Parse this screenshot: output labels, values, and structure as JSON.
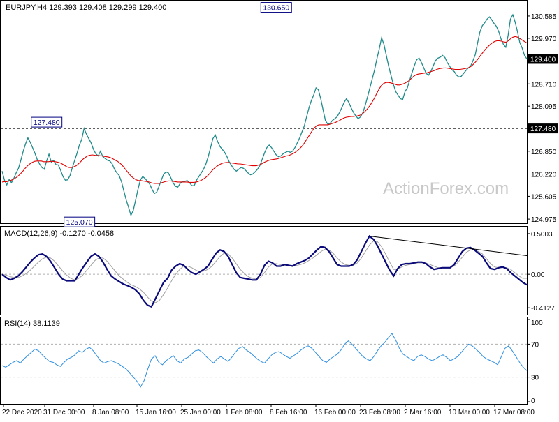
{
  "chart_data": {
    "type": "line",
    "symbol": "EURJPY",
    "timeframe": "H4",
    "header_text": "EURJPY,H4  129.393 129.408 129.299 129.400",
    "ohlc": {
      "open": 129.393,
      "high": 129.408,
      "low": 129.299,
      "close": 129.4
    },
    "watermark": "ActionForex.com",
    "x_tick_labels": [
      "22 Dec 2020",
      "31 Dec 00:00",
      "8 Jan 08:00",
      "15 Jan 16:00",
      "25 Jan 00:00",
      "1 Feb 08:00",
      "8 Feb 16:00",
      "16 Feb 00:00",
      "23 Feb 08:00",
      "2 Mar 16:00",
      "10 Mar 00:00",
      "17 Mar 08:00"
    ],
    "price_panel": {
      "y_ticks": [
        130.585,
        129.97,
        129.355,
        128.71,
        128.095,
        127.48,
        126.85,
        126.22,
        125.605,
        124.975
      ],
      "ylim": [
        124.9,
        130.95
      ],
      "current_price_label": "129.400",
      "current_price": 129.4,
      "level_label": "127.480",
      "level": 127.48,
      "annotations": [
        {
          "text": "127.480",
          "value": 127.48,
          "index": 19
        },
        {
          "text": "125.070",
          "value": 125.07,
          "index": 33
        },
        {
          "text": "130.650",
          "value": 130.65,
          "index": 117
        }
      ],
      "series": [
        {
          "name": "",
          "values": [
            126.3,
            126.05,
            125.92,
            126.07,
            125.98,
            126.1,
            126.25,
            126.38,
            126.6,
            126.85,
            127.05,
            127.22,
            127.1,
            126.95,
            126.8,
            126.62,
            126.5,
            126.4,
            126.35,
            126.58,
            126.77,
            126.55,
            126.6,
            126.48,
            126.47,
            126.32,
            126.15,
            126.05,
            126.06,
            126.18,
            126.4,
            126.6,
            126.8,
            127.02,
            127.18,
            127.48,
            127.32,
            127.2,
            127.08,
            126.9,
            126.78,
            126.72,
            126.85,
            126.7,
            126.65,
            126.6,
            126.58,
            126.5,
            126.35,
            126.25,
            126.18,
            126.0,
            125.75,
            125.5,
            125.3,
            125.08,
            125.22,
            125.5,
            125.8,
            126.05,
            126.15,
            126.1,
            126.02,
            125.94,
            125.8,
            125.68,
            125.72,
            125.88,
            126.06,
            126.22,
            126.28,
            126.25,
            126.12,
            125.98,
            125.88,
            125.86,
            125.96,
            126.02,
            126.02,
            126.04,
            125.98,
            125.9,
            125.9,
            126.05,
            126.15,
            126.25,
            126.35,
            126.5,
            126.7,
            126.95,
            127.2,
            127.3,
            127.12,
            126.98,
            126.9,
            126.82,
            126.7,
            126.55,
            126.45,
            126.35,
            126.3,
            126.35,
            126.4,
            126.38,
            126.32,
            126.25,
            126.2,
            126.22,
            126.28,
            126.35,
            126.45,
            126.62,
            126.8,
            126.95,
            127.02,
            126.95,
            126.85,
            126.75,
            126.7,
            126.72,
            126.78,
            126.82,
            126.85,
            126.82,
            126.85,
            126.95,
            127.08,
            127.22,
            127.38,
            127.55,
            127.8,
            128.05,
            128.25,
            128.4,
            128.6,
            128.55,
            128.3,
            128.0,
            127.7,
            127.6,
            127.62,
            127.7,
            127.75,
            127.8,
            127.92,
            128.05,
            128.2,
            128.3,
            128.2,
            128.05,
            127.92,
            127.82,
            127.75,
            127.8,
            127.92,
            128.12,
            128.35,
            128.6,
            128.85,
            129.1,
            129.4,
            129.68,
            129.98,
            129.8,
            129.5,
            129.2,
            128.95,
            128.7,
            128.5,
            128.4,
            128.3,
            128.28,
            128.5,
            128.6,
            128.82,
            129.02,
            129.22,
            129.38,
            129.42,
            129.3,
            129.15,
            129.0,
            128.95,
            129.05,
            129.2,
            129.35,
            129.42,
            129.45,
            129.5,
            129.44,
            129.3,
            129.2,
            129.1,
            129.05,
            128.95,
            128.9,
            128.92,
            129.0,
            129.08,
            129.15,
            129.2,
            129.35,
            129.52,
            129.85,
            130.15,
            130.32,
            130.4,
            130.5,
            130.56,
            130.48,
            130.38,
            130.3,
            130.15,
            129.95,
            129.8,
            129.72,
            130.05,
            130.5,
            130.62,
            130.42,
            130.15,
            129.85,
            129.7,
            129.5,
            129.4
          ]
        },
        {
          "name": "",
          "values": [
            126.0,
            126.01,
            126.01,
            126.03,
            126.05,
            126.08,
            126.12,
            126.17,
            126.23,
            126.3,
            126.38,
            126.45,
            126.5,
            126.54,
            126.57,
            126.58,
            126.58,
            126.58,
            126.56,
            126.56,
            126.56,
            126.57,
            126.57,
            126.56,
            126.55,
            126.53,
            126.5,
            126.46,
            126.42,
            126.4,
            126.4,
            126.42,
            126.45,
            126.5,
            126.56,
            126.63,
            126.68,
            126.72,
            126.74,
            126.75,
            126.74,
            126.73,
            126.73,
            126.72,
            126.71,
            126.7,
            126.69,
            126.67,
            126.64,
            126.6,
            126.57,
            126.52,
            126.46,
            126.38,
            126.3,
            126.22,
            126.15,
            126.1,
            126.06,
            126.04,
            126.04,
            126.03,
            126.02,
            126.01,
            125.99,
            125.97,
            125.96,
            125.96,
            125.96,
            125.98,
            126.0,
            126.02,
            126.03,
            126.03,
            126.02,
            126.01,
            126.0,
            126.0,
            126.0,
            126.0,
            126.0,
            125.99,
            125.99,
            125.99,
            126.0,
            126.02,
            126.04,
            126.08,
            126.12,
            126.18,
            126.25,
            126.33,
            126.39,
            126.44,
            126.48,
            126.51,
            126.53,
            126.54,
            126.54,
            126.53,
            126.52,
            126.51,
            126.5,
            126.5,
            126.49,
            126.48,
            126.47,
            126.46,
            126.45,
            126.45,
            126.45,
            126.47,
            126.49,
            126.53,
            126.56,
            126.59,
            126.61,
            126.62,
            126.63,
            126.64,
            126.66,
            126.68,
            126.7,
            126.72,
            126.73,
            126.76,
            126.79,
            126.83,
            126.88,
            126.94,
            127.01,
            127.1,
            127.2,
            127.3,
            127.4,
            127.49,
            127.55,
            127.58,
            127.58,
            127.58,
            127.58,
            127.58,
            127.6,
            127.62,
            127.64,
            127.67,
            127.7,
            127.74,
            127.77,
            127.79,
            127.8,
            127.81,
            127.81,
            127.82,
            127.83,
            127.85,
            127.89,
            127.95,
            128.02,
            128.1,
            128.2,
            128.31,
            128.44,
            128.56,
            128.66,
            128.72,
            128.75,
            128.75,
            128.74,
            128.72,
            128.7,
            128.68,
            128.68,
            128.7,
            128.72,
            128.76,
            128.8,
            128.86,
            128.92,
            128.96,
            128.98,
            128.99,
            129.0,
            129.01,
            129.02,
            129.04,
            129.06,
            129.08,
            129.11,
            129.13,
            129.14,
            129.15,
            129.15,
            129.14,
            129.13,
            129.12,
            129.11,
            129.11,
            129.11,
            129.12,
            129.13,
            129.14,
            129.16,
            129.2,
            129.26,
            129.33,
            129.41,
            129.5,
            129.58,
            129.66,
            129.73,
            129.79,
            129.84,
            129.88,
            129.9,
            129.9,
            129.89,
            129.87,
            129.86,
            129.9,
            129.96,
            130.0,
            130.02,
            130.0,
            129.96,
            129.92,
            129.88,
            129.84
          ]
        }
      ]
    },
    "macd_panel": {
      "label": "MACD(12,26,9) -0.1270 -0.0458",
      "y_ticks": [
        0.5003,
        0.0,
        -0.4127
      ],
      "ylim": [
        -0.48,
        0.56
      ],
      "series": [
        {
          "name": "",
          "values": [
            0.0,
            -0.04,
            -0.07,
            -0.05,
            -0.02,
            0.03,
            0.09,
            0.15,
            0.2,
            0.24,
            0.25,
            0.22,
            0.16,
            0.08,
            0.0,
            -0.06,
            -0.08,
            -0.08,
            -0.08,
            0.0,
            0.08,
            0.15,
            0.22,
            0.25,
            0.22,
            0.15,
            0.06,
            -0.02,
            -0.06,
            -0.09,
            -0.12,
            -0.14,
            -0.16,
            -0.19,
            -0.24,
            -0.32,
            -0.38,
            -0.4,
            -0.3,
            -0.2,
            -0.1,
            -0.05,
            0.05,
            0.1,
            0.13,
            0.11,
            0.06,
            0.02,
            0.0,
            0.03,
            0.06,
            0.1,
            0.18,
            0.26,
            0.3,
            0.28,
            0.22,
            0.12,
            0.02,
            -0.04,
            -0.05,
            -0.06,
            -0.07,
            -0.07,
            0.0,
            0.11,
            0.16,
            0.14,
            0.1,
            0.1,
            0.12,
            0.11,
            0.1,
            0.13,
            0.15,
            0.17,
            0.2,
            0.25,
            0.3,
            0.34,
            0.33,
            0.28,
            0.2,
            0.12,
            0.1,
            0.1,
            0.1,
            0.12,
            0.18,
            0.28,
            0.38,
            0.47,
            0.43,
            0.35,
            0.25,
            0.15,
            0.05,
            -0.02,
            0.07,
            0.12,
            0.13,
            0.13,
            0.14,
            0.15,
            0.15,
            0.13,
            0.09,
            0.06,
            0.07,
            0.08,
            0.08,
            0.08,
            0.12,
            0.2,
            0.28,
            0.32,
            0.33,
            0.3,
            0.26,
            0.22,
            0.14,
            0.07,
            0.06,
            0.08,
            0.09,
            0.07,
            0.02,
            -0.02,
            -0.06,
            -0.1,
            -0.13
          ]
        },
        {
          "name": "",
          "values": [
            0.0,
            -0.01,
            -0.03,
            -0.04,
            -0.04,
            -0.02,
            0.01,
            0.05,
            0.1,
            0.15,
            0.19,
            0.21,
            0.2,
            0.16,
            0.1,
            0.04,
            -0.01,
            -0.05,
            -0.07,
            -0.05,
            -0.01,
            0.05,
            0.11,
            0.17,
            0.2,
            0.2,
            0.16,
            0.1,
            0.04,
            -0.02,
            -0.06,
            -0.1,
            -0.13,
            -0.15,
            -0.18,
            -0.22,
            -0.28,
            -0.33,
            -0.35,
            -0.32,
            -0.25,
            -0.17,
            -0.08,
            0.0,
            0.06,
            0.1,
            0.1,
            0.08,
            0.05,
            0.03,
            0.04,
            0.06,
            0.1,
            0.16,
            0.22,
            0.26,
            0.25,
            0.2,
            0.13,
            0.06,
            0.01,
            -0.03,
            -0.05,
            -0.06,
            -0.04,
            0.02,
            0.09,
            0.13,
            0.13,
            0.12,
            0.11,
            0.11,
            0.11,
            0.11,
            0.12,
            0.14,
            0.17,
            0.2,
            0.24,
            0.28,
            0.31,
            0.3,
            0.26,
            0.2,
            0.15,
            0.12,
            0.11,
            0.11,
            0.14,
            0.2,
            0.28,
            0.36,
            0.41,
            0.4,
            0.34,
            0.25,
            0.15,
            0.06,
            0.06,
            0.09,
            0.11,
            0.12,
            0.13,
            0.14,
            0.14,
            0.14,
            0.12,
            0.1,
            0.08,
            0.08,
            0.08,
            0.08,
            0.1,
            0.15,
            0.21,
            0.27,
            0.3,
            0.3,
            0.28,
            0.25,
            0.19,
            0.13,
            0.09,
            0.08,
            0.08,
            0.08,
            0.06,
            0.02,
            -0.02,
            -0.05,
            -0.05
          ]
        }
      ]
    },
    "rsi_panel": {
      "label": "RSI(14) 38.1139",
      "y_ticks": [
        100,
        70,
        30,
        0
      ],
      "ylim": [
        0,
        100
      ],
      "levels": [
        70,
        30
      ],
      "series": [
        {
          "name": "",
          "values": [
            44,
            42,
            45,
            48,
            50,
            47,
            52,
            56,
            60,
            64,
            62,
            57,
            53,
            49,
            48,
            45,
            43,
            48,
            52,
            54,
            57,
            62,
            60,
            64,
            66,
            62,
            56,
            50,
            47,
            49,
            50,
            48,
            46,
            43,
            40,
            35,
            30,
            25,
            18,
            26,
            40,
            52,
            56,
            48,
            45,
            50,
            53,
            56,
            50,
            47,
            52,
            54,
            58,
            62,
            63,
            60,
            55,
            51,
            47,
            52,
            55,
            52,
            49,
            54,
            60,
            65,
            67,
            63,
            60,
            56,
            52,
            49,
            47,
            52,
            57,
            60,
            61,
            58,
            55,
            53,
            56,
            59,
            63,
            66,
            68,
            65,
            60,
            55,
            50,
            48,
            52,
            55,
            58,
            63,
            70,
            74,
            70,
            65,
            60,
            55,
            52,
            50,
            55,
            62,
            68,
            72,
            78,
            83,
            75,
            65,
            58,
            55,
            52,
            50,
            55,
            57,
            55,
            52,
            50,
            52,
            55,
            57,
            54,
            50,
            52,
            55,
            60,
            65,
            70,
            68,
            64,
            60,
            55,
            52,
            50,
            48,
            45,
            55,
            65,
            68,
            62,
            55,
            48,
            42,
            38
          ]
        }
      ]
    },
    "colors": {
      "price": "#1f8a8a",
      "moving_average": "#e00000",
      "macd": "#0a0a7a",
      "signal": "#a0a0a0",
      "rsi": "#2f8fe0",
      "trend_line": "#000000",
      "watermark": "#c8c8c8",
      "current_price_box": "#000000"
    }
  }
}
